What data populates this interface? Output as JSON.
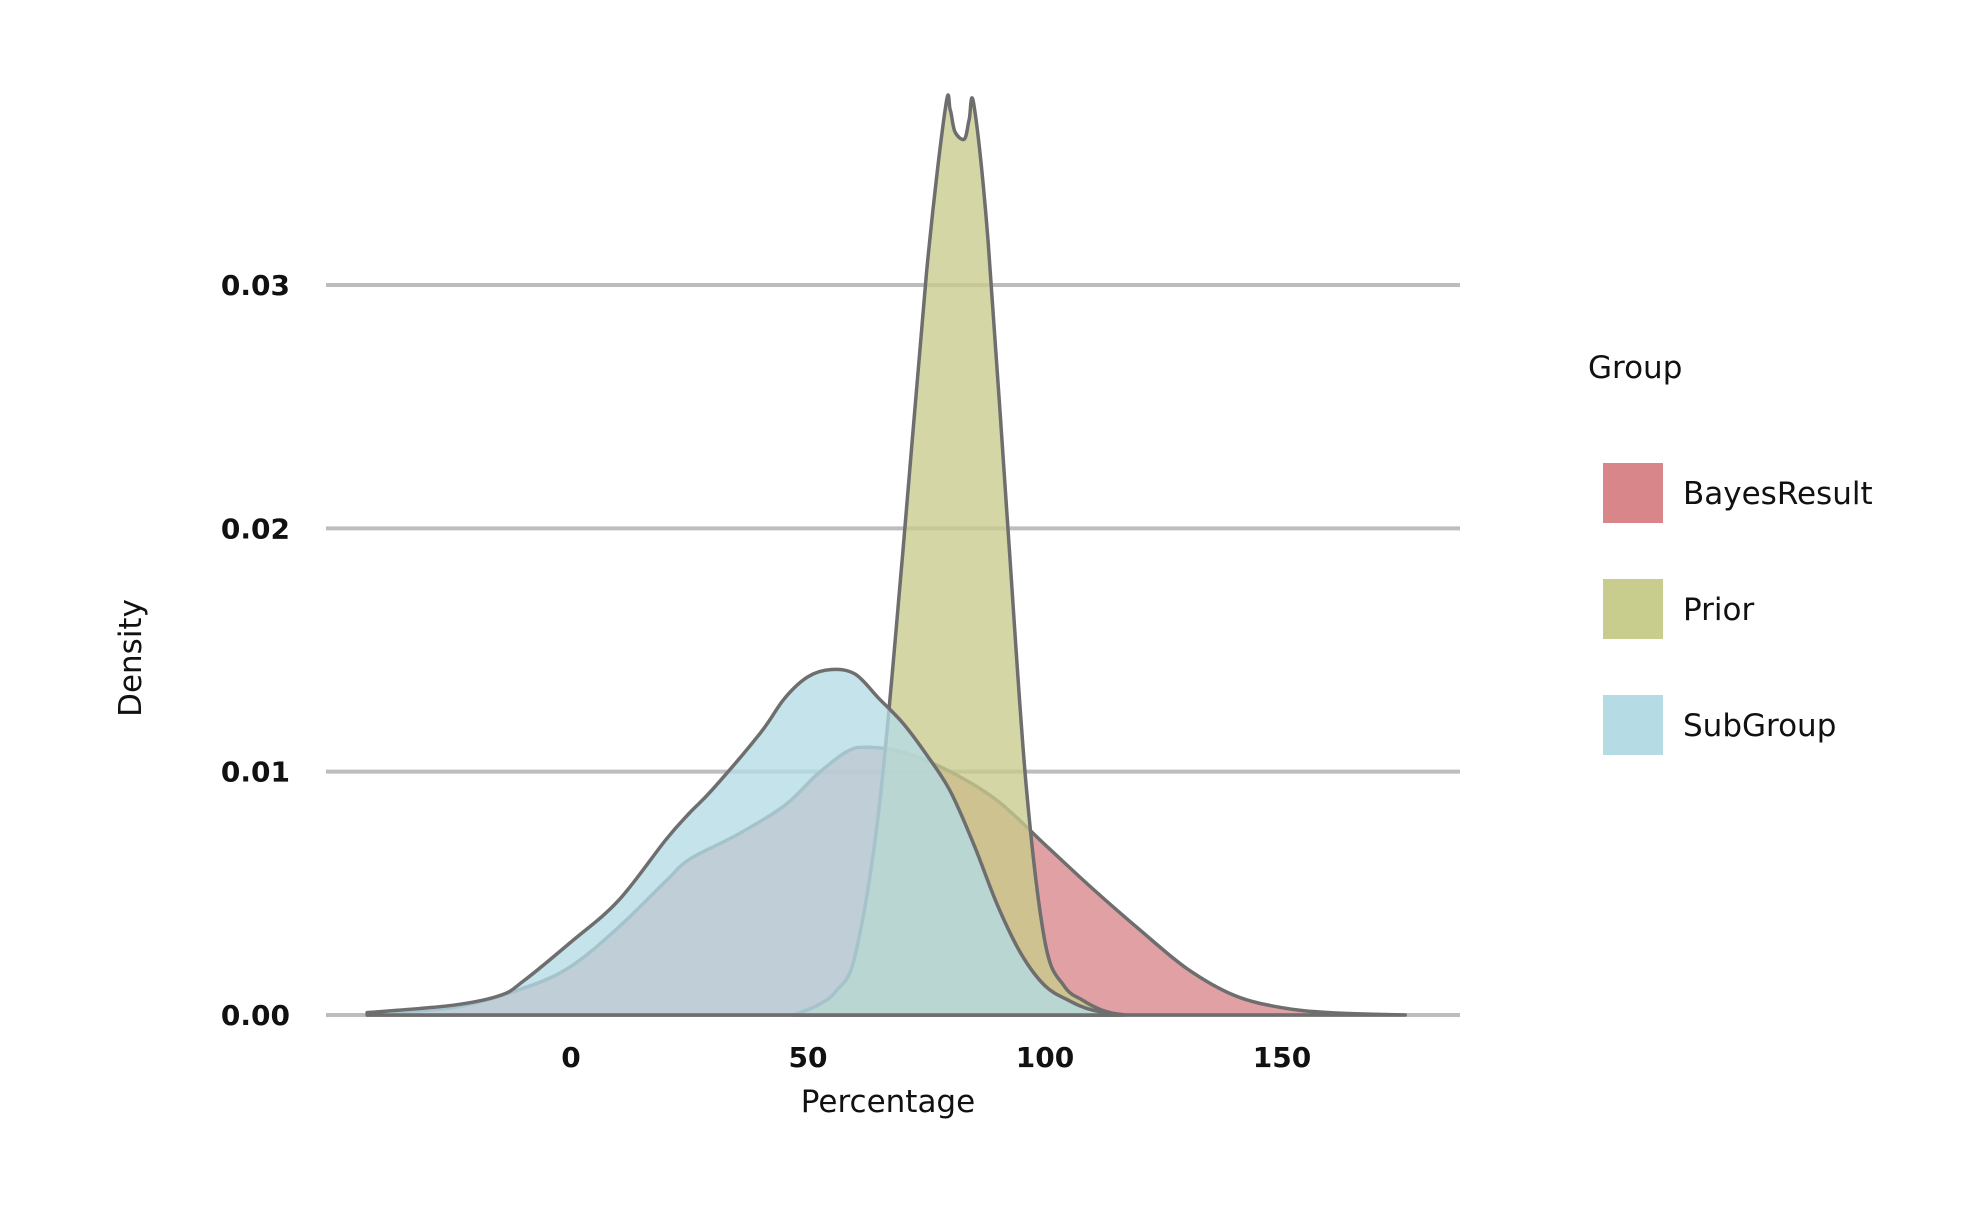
{
  "chart_data": {
    "type": "area",
    "subtype": "density",
    "title": "",
    "xlabel": "Percentage",
    "ylabel": "Density",
    "xlim": [
      -43,
      176
    ],
    "ylim": [
      0,
      0.0375
    ],
    "x_ticks": [
      0,
      50,
      100,
      150
    ],
    "x_tick_labels": [
      "0",
      "50",
      "100",
      "150"
    ],
    "y_ticks": [
      0.0,
      0.01,
      0.02,
      0.03
    ],
    "y_tick_labels": [
      "0.00",
      "0.01",
      "0.02",
      "0.03"
    ],
    "grid": "horizontal major lines only",
    "legend": {
      "title": "Group",
      "placement": "right"
    },
    "series": [
      {
        "name": "BayesResult",
        "color": "#d9868a",
        "x": [
          -43,
          -25,
          -10,
          0,
          10,
          20,
          25,
          35,
          45,
          52,
          58,
          62,
          70,
          80,
          90,
          100,
          110,
          120,
          130,
          140,
          150,
          160,
          176
        ],
        "density": [
          0.0001,
          0.0003,
          0.0011,
          0.002,
          0.0036,
          0.0055,
          0.0064,
          0.0074,
          0.0086,
          0.0099,
          0.0108,
          0.011,
          0.0108,
          0.01,
          0.0088,
          0.007,
          0.0052,
          0.0035,
          0.0019,
          0.0008,
          0.0003,
          0.0001,
          0.0
        ]
      },
      {
        "name": "Prior",
        "color": "#c8cc8c",
        "x": [
          47,
          52,
          56,
          60,
          65,
          70,
          75,
          79,
          80,
          81,
          83,
          84,
          85,
          88,
          92,
          96,
          100,
          104,
          108,
          112,
          116
        ],
        "density": [
          0.0,
          0.0004,
          0.001,
          0.0025,
          0.0085,
          0.019,
          0.0305,
          0.0373,
          0.0372,
          0.0363,
          0.036,
          0.0368,
          0.0374,
          0.0318,
          0.0205,
          0.0095,
          0.003,
          0.0012,
          0.0006,
          0.0002,
          0.0
        ]
      },
      {
        "name": "SubGroup",
        "color": "#b5dbe5",
        "x": [
          -43,
          -25,
          -15,
          -10,
          0,
          10,
          20,
          25,
          30,
          40,
          45,
          50,
          55,
          60,
          65,
          70,
          75,
          80,
          85,
          90,
          95,
          100,
          105,
          110,
          117
        ],
        "density": [
          0.0001,
          0.0004,
          0.0008,
          0.0014,
          0.003,
          0.0047,
          0.0072,
          0.0083,
          0.0093,
          0.0116,
          0.013,
          0.0139,
          0.0142,
          0.014,
          0.013,
          0.012,
          0.0107,
          0.0092,
          0.007,
          0.0045,
          0.0025,
          0.0012,
          0.0006,
          0.0002,
          0.0
        ]
      }
    ]
  }
}
